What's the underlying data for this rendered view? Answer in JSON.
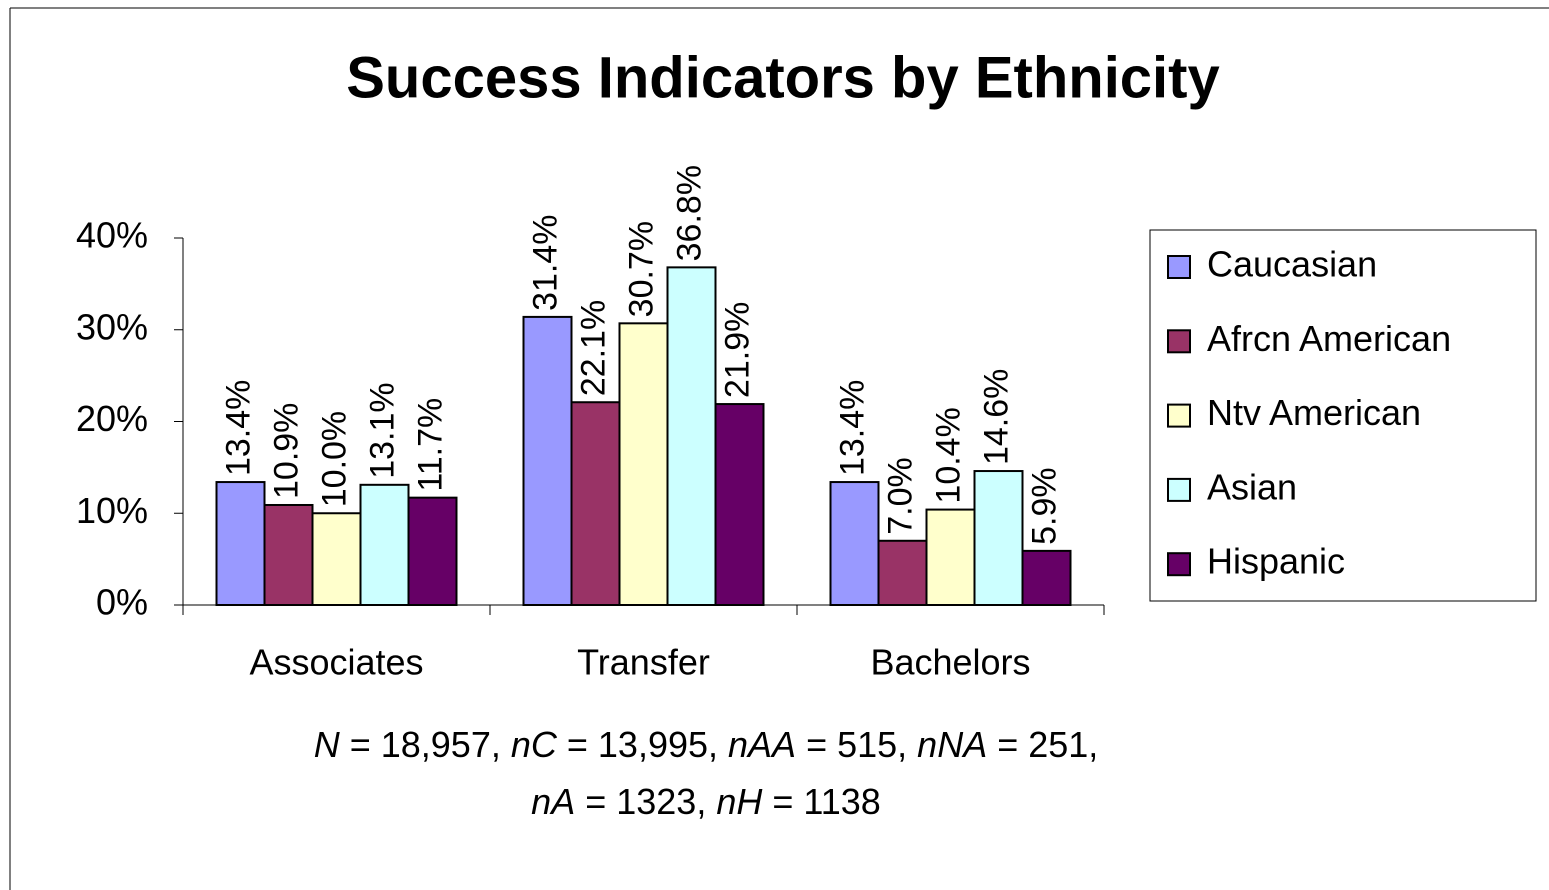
{
  "chart_data": {
    "type": "bar",
    "title": "Success Indicators by Ethnicity",
    "categories": [
      "Associates",
      "Transfer",
      "Bachelors"
    ],
    "series": [
      {
        "name": "Caucasian",
        "color": "#9999ff",
        "values": [
          13.4,
          31.4,
          13.4
        ],
        "value_labels": [
          "13.4%",
          "31.4%",
          "13.4%"
        ]
      },
      {
        "name": "Afrcn American",
        "color": "#993366",
        "values": [
          10.9,
          22.1,
          7.0
        ],
        "value_labels": [
          "10.9%",
          "22.1%",
          "7.0%"
        ]
      },
      {
        "name": "Ntv American",
        "color": "#ffffcc",
        "values": [
          10.0,
          30.7,
          10.4
        ],
        "value_labels": [
          "10.0%",
          "30.7%",
          "10.4%"
        ]
      },
      {
        "name": "Asian",
        "color": "#ccffff",
        "values": [
          13.1,
          36.8,
          14.6
        ],
        "value_labels": [
          "13.1%",
          "36.8%",
          "14.6%"
        ]
      },
      {
        "name": "Hispanic",
        "color": "#660066",
        "values": [
          11.7,
          21.9,
          5.9
        ],
        "value_labels": [
          "11.7%",
          "21.9%",
          "5.9%"
        ]
      }
    ],
    "ylim": [
      0,
      40
    ],
    "yticks": [
      {
        "value": 0,
        "label": "0%"
      },
      {
        "value": 10,
        "label": "10%"
      },
      {
        "value": 20,
        "label": "20%"
      },
      {
        "value": 30,
        "label": "30%"
      },
      {
        "value": 40,
        "label": "40%"
      }
    ],
    "legend": "right",
    "note": [
      [
        {
          "text": "N",
          "italic": true
        },
        {
          "text": " = 18,957, ",
          "italic": false
        },
        {
          "text": "nC",
          "italic": true
        },
        {
          "text": " = 13,995, ",
          "italic": false
        },
        {
          "text": "nAA",
          "italic": true
        },
        {
          "text": " = 515, ",
          "italic": false
        },
        {
          "text": "nNA",
          "italic": true
        },
        {
          "text": " = 251,",
          "italic": false
        }
      ],
      [
        {
          "text": "nA",
          "italic": true
        },
        {
          "text": " = 1323, ",
          "italic": false
        },
        {
          "text": "nH",
          "italic": true
        },
        {
          "text": " = 1138",
          "italic": false
        }
      ]
    ]
  }
}
